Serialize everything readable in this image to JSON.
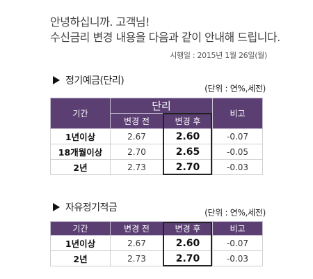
{
  "greeting": {
    "line1": "안녕하십니까. 고객님!",
    "line2": "수신금리 변경 내용을 다음과 같이 안내해 드립니다.",
    "effective_date": "시행일 : 2015년 1월 26일(월)"
  },
  "section1": {
    "title": "정기예금(단리)",
    "unit": "(단위 : 연%,세전)",
    "headers": {
      "period": "기간",
      "group": "단리",
      "before": "변경 전",
      "after": "변경 후",
      "note": "비고"
    },
    "rows": [
      {
        "period": "1년이상",
        "before": "2.67",
        "after": "2.60",
        "diff": "-0.07"
      },
      {
        "period": "18개월이상",
        "before": "2.70",
        "after": "2.65",
        "diff": "-0.05"
      },
      {
        "period": "2년",
        "before": "2.73",
        "after": "2.70",
        "diff": "-0.03"
      }
    ]
  },
  "section2": {
    "title": "자유정기적금",
    "unit": "(단위 : 연%,세전)",
    "headers": {
      "period": "기간",
      "before": "변경 전",
      "after": "변경 후",
      "note": "비고"
    },
    "rows": [
      {
        "period": "1년이상",
        "before": "2.67",
        "after": "2.60",
        "diff": "-0.07"
      },
      {
        "period": "2년",
        "before": "2.73",
        "after": "2.70",
        "diff": "-0.03"
      }
    ]
  },
  "colors": {
    "header_bg": "#5b3f73",
    "header_text": "#ffffff"
  }
}
